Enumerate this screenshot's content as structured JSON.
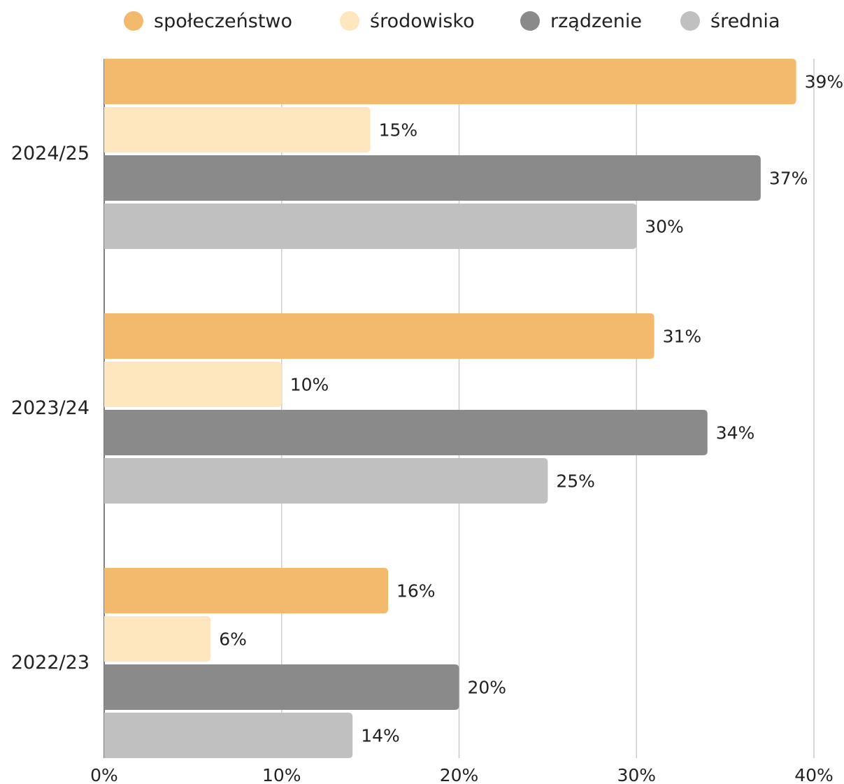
{
  "chart_data": {
    "type": "bar",
    "orientation": "horizontal",
    "categories": [
      "2024/25",
      "2023/24",
      "2022/23"
    ],
    "series": [
      {
        "name": "społeczeństwo",
        "color": "#F3B96D",
        "values": [
          39,
          31,
          16
        ],
        "labels": [
          "39%",
          "31%",
          "16%"
        ]
      },
      {
        "name": "środowisko",
        "color": "#FEE6BE",
        "values": [
          15,
          10,
          6
        ],
        "labels": [
          "15%",
          "10%",
          "6%"
        ]
      },
      {
        "name": "rządzenie",
        "color": "#8A8A8A",
        "values": [
          37,
          34,
          20
        ],
        "labels": [
          "37%",
          "34%",
          "20%"
        ]
      },
      {
        "name": "średnia",
        "color": "#C0C0C0",
        "values": [
          30,
          25,
          14
        ],
        "labels": [
          "30%",
          "25%",
          "14%"
        ]
      }
    ],
    "x_ticks": [
      "0%",
      "10%",
      "20%",
      "30%",
      "40%"
    ],
    "xlim": [
      0,
      40
    ],
    "grid": true,
    "legend": "top"
  }
}
